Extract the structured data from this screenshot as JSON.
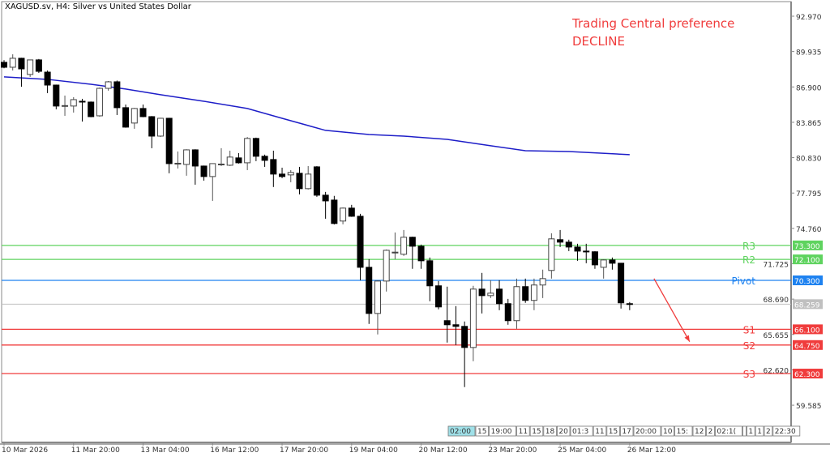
{
  "header": {
    "title": "XAGUSD.sv, H4:  Silver vs United States Dollar"
  },
  "annotation": {
    "line1": "Trading Central preference",
    "line2": "DECLINE",
    "color": "#f03c3c"
  },
  "chart_data": {
    "type": "candlestick",
    "symbol": "XAGUSD.sv",
    "timeframe": "H4",
    "ylim": [
      59.0,
      93.1
    ],
    "y_ticks": [
      "92.970",
      "89.935",
      "86.900",
      "83.865",
      "80.830",
      "77.795",
      "74.760",
      "71.725",
      "68.690",
      "65.655",
      "62.620",
      "59.585"
    ],
    "x_ticks": [
      {
        "index": 0,
        "label": "10 Mar 2026"
      },
      {
        "index": 8,
        "label": "11 Mar 20:00"
      },
      {
        "index": 16,
        "label": "13 Mar 04:00"
      },
      {
        "index": 24,
        "label": "16 Mar 12:00"
      },
      {
        "index": 32,
        "label": "17 Mar 20:00"
      },
      {
        "index": 40,
        "label": "19 Mar 04:00"
      },
      {
        "index": 48,
        "label": "20 Mar 12:00"
      },
      {
        "index": 56,
        "label": "23 Mar 20:00"
      },
      {
        "index": 64,
        "label": "25 Mar 04:00"
      },
      {
        "index": 72,
        "label": "26 Mar 12:00"
      }
    ],
    "candles_ohlc": [
      [
        89.01,
        89.2,
        88.5,
        88.59
      ],
      [
        88.59,
        89.7,
        88.31,
        89.36
      ],
      [
        89.36,
        89.4,
        86.92,
        88.45
      ],
      [
        87.97,
        89.25,
        87.76,
        89.22
      ],
      [
        89.22,
        89.3,
        88.1,
        88.24
      ],
      [
        88.17,
        88.31,
        86.37,
        87.06
      ],
      [
        87.06,
        87.1,
        84.98,
        85.26
      ],
      [
        85.26,
        86.16,
        84.42,
        85.3
      ],
      [
        85.26,
        86.02,
        84.7,
        85.81
      ],
      [
        85.67,
        85.88,
        83.93,
        85.6
      ],
      [
        85.6,
        85.65,
        84.3,
        84.35
      ],
      [
        84.42,
        86.85,
        84.35,
        86.78
      ],
      [
        86.78,
        87.41,
        86.58,
        87.34
      ],
      [
        87.34,
        87.45,
        84.49,
        85.12
      ],
      [
        85.12,
        85.39,
        83.4,
        83.45
      ],
      [
        83.8,
        85.1,
        83.31,
        85.05
      ],
      [
        85.05,
        85.39,
        84.3,
        84.35
      ],
      [
        84.35,
        84.4,
        81.64,
        82.68
      ],
      [
        82.68,
        84.25,
        82.6,
        84.21
      ],
      [
        84.21,
        84.25,
        79.49,
        80.32
      ],
      [
        80.32,
        81.36,
        79.9,
        80.35
      ],
      [
        80.25,
        81.55,
        79.28,
        81.5
      ],
      [
        81.5,
        81.55,
        78.51,
        80.11
      ],
      [
        80.11,
        80.15,
        78.86,
        79.21
      ],
      [
        79.21,
        80.35,
        77.12,
        80.32
      ],
      [
        80.25,
        81.64,
        80.11,
        80.28
      ],
      [
        80.18,
        81.43,
        80.11,
        80.88
      ],
      [
        80.81,
        81.22,
        80.32,
        80.39
      ],
      [
        80.39,
        82.6,
        79.76,
        82.48
      ],
      [
        82.48,
        82.55,
        80.53,
        80.95
      ],
      [
        80.95,
        81.09,
        80.04,
        80.6
      ],
      [
        80.67,
        81.43,
        78.31,
        79.42
      ],
      [
        79.42,
        79.97,
        79.07,
        79.21
      ],
      [
        79.35,
        79.76,
        78.72,
        79.56
      ],
      [
        79.49,
        80.04,
        77.68,
        78.17
      ],
      [
        78.17,
        80.11,
        78.1,
        79.42
      ],
      [
        80.04,
        80.1,
        77.47,
        77.61
      ],
      [
        77.61,
        77.89,
        75.59,
        77.12
      ],
      [
        77.19,
        77.55,
        75.1,
        75.18
      ],
      [
        75.39,
        76.55,
        75.11,
        76.5
      ],
      [
        76.5,
        76.78,
        75.75,
        75.8
      ],
      [
        75.8,
        76.01,
        70.31,
        71.42
      ],
      [
        71.42,
        72.12,
        66.56,
        67.46
      ],
      [
        67.46,
        70.3,
        65.66,
        70.24
      ],
      [
        70.24,
        72.95,
        69.34,
        72.88
      ],
      [
        72.68,
        74.41,
        72.12,
        72.72
      ],
      [
        72.54,
        74.62,
        72.4,
        74.0
      ],
      [
        74.0,
        74.05,
        71.29,
        73.23
      ],
      [
        73.23,
        73.37,
        71.29,
        71.98
      ],
      [
        71.98,
        72.26,
        68.51,
        69.83
      ],
      [
        69.83,
        70.24,
        67.81,
        68.02
      ],
      [
        66.84,
        69.76,
        64.96,
        66.49
      ],
      [
        66.49,
        68.09,
        64.75,
        66.35
      ],
      [
        66.35,
        66.77,
        61.14,
        64.54
      ],
      [
        64.54,
        69.83,
        63.36,
        69.55
      ],
      [
        69.55,
        70.94,
        67.46,
        68.99
      ],
      [
        68.99,
        70.31,
        68.78,
        69.2
      ],
      [
        69.55,
        70.31,
        67.74,
        68.3
      ],
      [
        68.3,
        68.71,
        66.49,
        66.84
      ],
      [
        66.84,
        70.45,
        66.14,
        69.76
      ],
      [
        69.76,
        70.45,
        68.37,
        68.58
      ],
      [
        68.58,
        70.45,
        67.74,
        69.9
      ],
      [
        69.9,
        71.22,
        68.78,
        70.45
      ],
      [
        71.15,
        74.34,
        70.45,
        73.86
      ],
      [
        73.79,
        74.62,
        73.16,
        73.58
      ],
      [
        73.58,
        73.79,
        72.81,
        73.16
      ],
      [
        73.16,
        73.44,
        71.98,
        72.81
      ],
      [
        72.81,
        73.44,
        71.77,
        72.78
      ],
      [
        72.75,
        72.8,
        71.29,
        71.63
      ],
      [
        71.42,
        72.1,
        70.45,
        72.05
      ],
      [
        72.05,
        72.26,
        71.22,
        71.77
      ],
      [
        71.77,
        71.8,
        67.88,
        68.37
      ],
      [
        68.3,
        68.44,
        67.74,
        68.26
      ]
    ],
    "moving_average": {
      "color": "#1e1ec8",
      "points": [
        [
          0,
          87.76
        ],
        [
          5,
          87.55
        ],
        [
          10,
          87.13
        ],
        [
          14,
          86.72
        ],
        [
          18,
          86.23
        ],
        [
          23,
          85.67
        ],
        [
          28,
          85.05
        ],
        [
          32,
          84.21
        ],
        [
          37,
          83.17
        ],
        [
          42,
          82.82
        ],
        [
          46,
          82.68
        ],
        [
          51,
          82.4
        ],
        [
          56,
          81.85
        ],
        [
          60,
          81.43
        ],
        [
          65,
          81.36
        ],
        [
          72,
          81.09
        ]
      ]
    },
    "levels": [
      {
        "name": "R3",
        "value": "73.300",
        "color": "#5fd35f"
      },
      {
        "name": "R2",
        "value": "72.100",
        "color": "#5fd35f"
      },
      {
        "name": "Pivot",
        "value": "70.300",
        "color": "#1e82f0"
      },
      {
        "name": "S1",
        "value": "66.100",
        "color": "#f03c3c"
      },
      {
        "name": "S2",
        "value": "64.750",
        "color": "#f03c3c"
      },
      {
        "name": "S3",
        "value": "62.300",
        "color": "#f03c3c"
      }
    ],
    "current_price": {
      "value": "68.259",
      "color": "#c0c0c0"
    },
    "forecast_arrow": {
      "from": [
        74.8,
        70.45
      ],
      "to": [
        78.9,
        65.04
      ],
      "color": "#f03c3c"
    },
    "session_markers": [
      "02:00",
      "15",
      "19:00",
      "11",
      "15",
      "18",
      "20",
      "01:3",
      "11",
      "15",
      "17",
      "20:00",
      "10",
      "15:",
      "12",
      "2",
      "02:1(",
      "",
      "1",
      "1",
      "2",
      "22:30"
    ]
  }
}
